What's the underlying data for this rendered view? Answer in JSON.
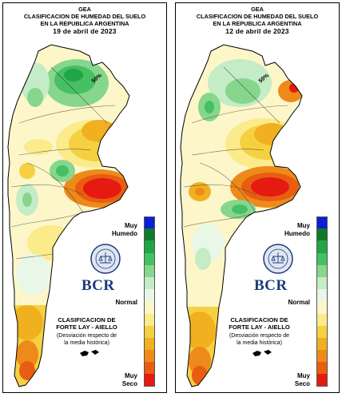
{
  "panels": [
    {
      "gea": "GEA",
      "title_line1": "CLASIFICACION DE HUMEDAD DEL SUELO",
      "title_line2": "EN LA REPUBLICA ARGENTINA",
      "date": "19 de abril de 2023",
      "contour_label": "50%"
    },
    {
      "gea": "GEA",
      "title_line1": "CLASIFICACION DE HUMEDAD DEL SUELO",
      "title_line2": "EN LA REPUBLICA ARGENTINA",
      "date": "12 de abril de 2023",
      "contour_label": "50%"
    }
  ],
  "legend": {
    "top_label_1": "Muy",
    "top_label_2": "Humedo",
    "middle_label": "Normal",
    "bottom_label_1": "Muy",
    "bottom_label_2": "Seco",
    "colors": [
      "#0a1fd6",
      "#0f7a2a",
      "#22a546",
      "#45c062",
      "#86d68d",
      "#c4ecc6",
      "#e9f7e6",
      "#fdf6c9",
      "#fbeb8a",
      "#f5d142",
      "#f0b020",
      "#ee8a1a",
      "#e85d12",
      "#e51a10"
    ]
  },
  "logo": {
    "text": "BCR"
  },
  "classification": {
    "line1": "CLASIFICACION DE",
    "line2": "FORTE LAY - AIELLO",
    "note1": "(Desviación respecto de",
    "note2": "la media histórica)"
  },
  "colors": {
    "very_wet": "#0a1fd6",
    "wet": "#22a546",
    "normal": "#fdf6c9",
    "dry": "#f0b020",
    "very_dry": "#e51a10"
  }
}
